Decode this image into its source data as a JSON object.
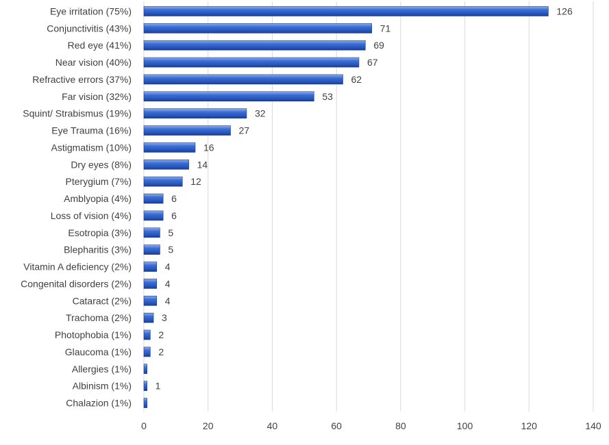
{
  "chart_data": {
    "type": "bar",
    "orientation": "horizontal",
    "title": "",
    "xlabel": "",
    "ylabel": "",
    "xlim": [
      0,
      140
    ],
    "x_ticks": [
      0,
      20,
      40,
      60,
      80,
      100,
      120,
      140
    ],
    "grid": "vertical",
    "legend": "none",
    "bar_color": "#2f5fc4",
    "categories": [
      "Eye irritation (75%)",
      "Conjunctivitis (43%)",
      "Red eye (41%)",
      "Near vision (40%)",
      "Refractive errors (37%)",
      "Far vision (32%)",
      "Squint/ Strabismus (19%)",
      "Eye Trauma (16%)",
      "Astigmatism (10%)",
      "Dry eyes (8%)",
      "Pterygium (7%)",
      "Amblyopia (4%)",
      "Loss of vision (4%)",
      "Esotropia (3%)",
      "Blepharitis (3%)",
      "Vitamin A deficiency (2%)",
      "Congenital disorders (2%)",
      "Cataract (2%)",
      "Trachoma (2%)",
      "Photophobia (1%)",
      "Glaucoma (1%)",
      "Allergies (1%)",
      "Albinism (1%)",
      "Chalazion (1%)"
    ],
    "values": [
      126,
      71,
      69,
      67,
      62,
      53,
      32,
      27,
      16,
      14,
      12,
      6,
      6,
      5,
      5,
      4,
      4,
      4,
      3,
      2,
      2,
      1,
      1,
      1
    ],
    "data_labels": [
      "126",
      "71",
      "69",
      "67",
      "62",
      "53",
      "32",
      "27",
      "16",
      "14",
      "12",
      "6",
      "6",
      "5",
      "5",
      "4",
      "4",
      "4",
      "3",
      "2",
      "2",
      "",
      "1",
      ""
    ]
  }
}
